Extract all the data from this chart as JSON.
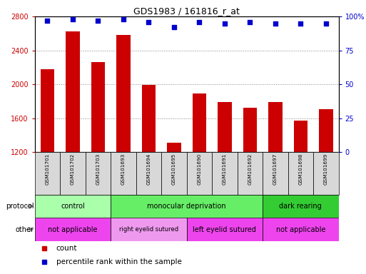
{
  "title": "GDS1983 / 161816_r_at",
  "samples": [
    "GSM101701",
    "GSM101702",
    "GSM101703",
    "GSM101693",
    "GSM101694",
    "GSM101695",
    "GSM101690",
    "GSM101691",
    "GSM101692",
    "GSM101697",
    "GSM101698",
    "GSM101699"
  ],
  "counts": [
    2180,
    2620,
    2260,
    2580,
    1990,
    1310,
    1890,
    1790,
    1720,
    1790,
    1570,
    1710
  ],
  "percentile_ranks": [
    97,
    98,
    97,
    98,
    96,
    92,
    96,
    95,
    96,
    95,
    95,
    95
  ],
  "ylim_left": [
    1200,
    2800
  ],
  "ylim_right": [
    0,
    100
  ],
  "yticks_left": [
    1200,
    1600,
    2000,
    2400,
    2800
  ],
  "yticks_right": [
    0,
    25,
    50,
    75,
    100
  ],
  "bar_color": "#cc0000",
  "dot_color": "#0000cc",
  "protocol_groups": [
    {
      "label": "control",
      "start": 0,
      "end": 3,
      "color": "#aaffaa"
    },
    {
      "label": "monocular deprivation",
      "start": 3,
      "end": 9,
      "color": "#66ee66"
    },
    {
      "label": "dark rearing",
      "start": 9,
      "end": 12,
      "color": "#33cc33"
    }
  ],
  "other_groups": [
    {
      "label": "not applicable",
      "start": 0,
      "end": 3,
      "color": "#ee44ee"
    },
    {
      "label": "right eyelid sutured",
      "start": 3,
      "end": 6,
      "color": "#ee99ee"
    },
    {
      "label": "left eyelid sutured",
      "start": 6,
      "end": 9,
      "color": "#ee44ee"
    },
    {
      "label": "not applicable",
      "start": 9,
      "end": 12,
      "color": "#ee44ee"
    }
  ],
  "protocol_label": "protocol",
  "other_label": "other",
  "legend_count_label": "count",
  "legend_pct_label": "percentile rank within the sample",
  "axis_label_color_left": "#cc0000",
  "axis_label_color_right": "#0000cc",
  "grid_color": "#888888",
  "bg_color": "#ffffff",
  "tick_area_bg": "#d8d8d8",
  "border_color": "#000000"
}
